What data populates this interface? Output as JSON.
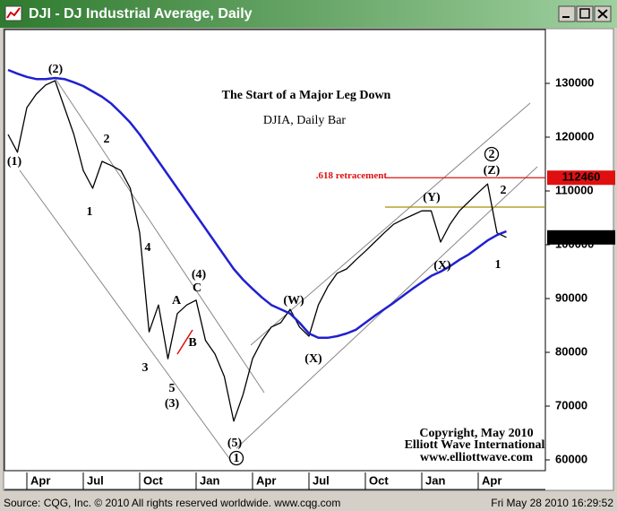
{
  "window_title": "DJI - DJ Industrial Average, Daily",
  "status": {
    "source": "Source: CQG, Inc. © 2010 All rights reserved worldwide. www.cqg.com",
    "timestamp": "Fri May 28 2010 16:29:52"
  },
  "chart_data": {
    "type": "line",
    "title": "The Start of a Major Leg Down",
    "subtitle": "DJIA, Daily Bar",
    "credits": [
      "Copyright, May 2010",
      "Elliott Wave International",
      "www.elliottwave.com"
    ],
    "categories": [
      null,
      null,
      "Apr",
      null,
      null,
      null,
      null,
      null,
      "Jul",
      null,
      null,
      null,
      null,
      null,
      "Oct",
      null,
      null,
      null,
      null,
      null,
      "Jan",
      null,
      null,
      null,
      null,
      null,
      "Apr",
      null,
      null,
      null,
      null,
      null,
      "Jul",
      null,
      null,
      null,
      null,
      null,
      "Oct",
      null,
      null,
      null,
      null,
      null,
      "Jan",
      null,
      null,
      null,
      null,
      null,
      "Apr",
      null,
      null,
      null
    ],
    "series": [
      {
        "color": "#000000",
        "values": [
          120500,
          117200,
          125500,
          128000,
          129700,
          130500,
          125500,
          120500,
          113800,
          110500,
          115500,
          114700,
          113800,
          110500,
          102200,
          83800,
          88800,
          78800,
          87200,
          88800,
          89700,
          82200,
          79700,
          75500,
          67200,
          72200,
          78800,
          82200,
          84700,
          85500,
          88000,
          84700,
          83000,
          88800,
          92200,
          94700,
          95500,
          97200,
          98800,
          100500,
          102200,
          103800,
          104700,
          105500,
          106300,
          106300,
          100500,
          103800,
          106300,
          108000,
          109700,
          111300,
          102200,
          101366
        ]
      },
      {
        "color": "#2020d0",
        "values": [
          132500,
          131800,
          131200,
          130800,
          130800,
          131000,
          130800,
          130200,
          129500,
          128500,
          127500,
          126200,
          124500,
          122700,
          120500,
          118000,
          115500,
          113000,
          110500,
          108000,
          105500,
          103000,
          100500,
          98000,
          95500,
          93500,
          91800,
          90200,
          88800,
          88000,
          87200,
          85500,
          83500,
          82700,
          82700,
          83000,
          83500,
          84200,
          85500,
          86800,
          88000,
          89200,
          90500,
          91800,
          93000,
          94200,
          95000,
          96000,
          97200,
          98200,
          99500,
          100800,
          101800,
          102500
        ]
      }
    ],
    "ylim": [
      58000,
      140000
    ],
    "yticks": [
      60000,
      70000,
      80000,
      90000,
      100000,
      110000,
      120000,
      130000
    ],
    "grid": false,
    "reference_lines": [
      {
        "value": 112460,
        "color": "#e01010",
        "label": ".618 retracement"
      },
      {
        "value": 107000,
        "color": "#a89000"
      }
    ],
    "wave_labels": [
      {
        "text": "(1)"
      },
      {
        "text": "(2)"
      },
      {
        "text": "1"
      },
      {
        "text": "2"
      },
      {
        "text": "4"
      },
      {
        "text": "3"
      },
      {
        "text": "5"
      },
      {
        "text": "(3)"
      },
      {
        "text": "A"
      },
      {
        "text": "(4)"
      },
      {
        "text": "C"
      },
      {
        "text": "B"
      },
      {
        "text": "(5)"
      },
      {
        "text": "1",
        "circled": true
      },
      {
        "text": "(W)"
      },
      {
        "text": "(X)"
      },
      {
        "text": "(Y)"
      },
      {
        "text": "(X)"
      },
      {
        "text": "2",
        "circled": true
      },
      {
        "text": "(Z)"
      },
      {
        "text": "2"
      },
      {
        "text": "1"
      }
    ]
  }
}
